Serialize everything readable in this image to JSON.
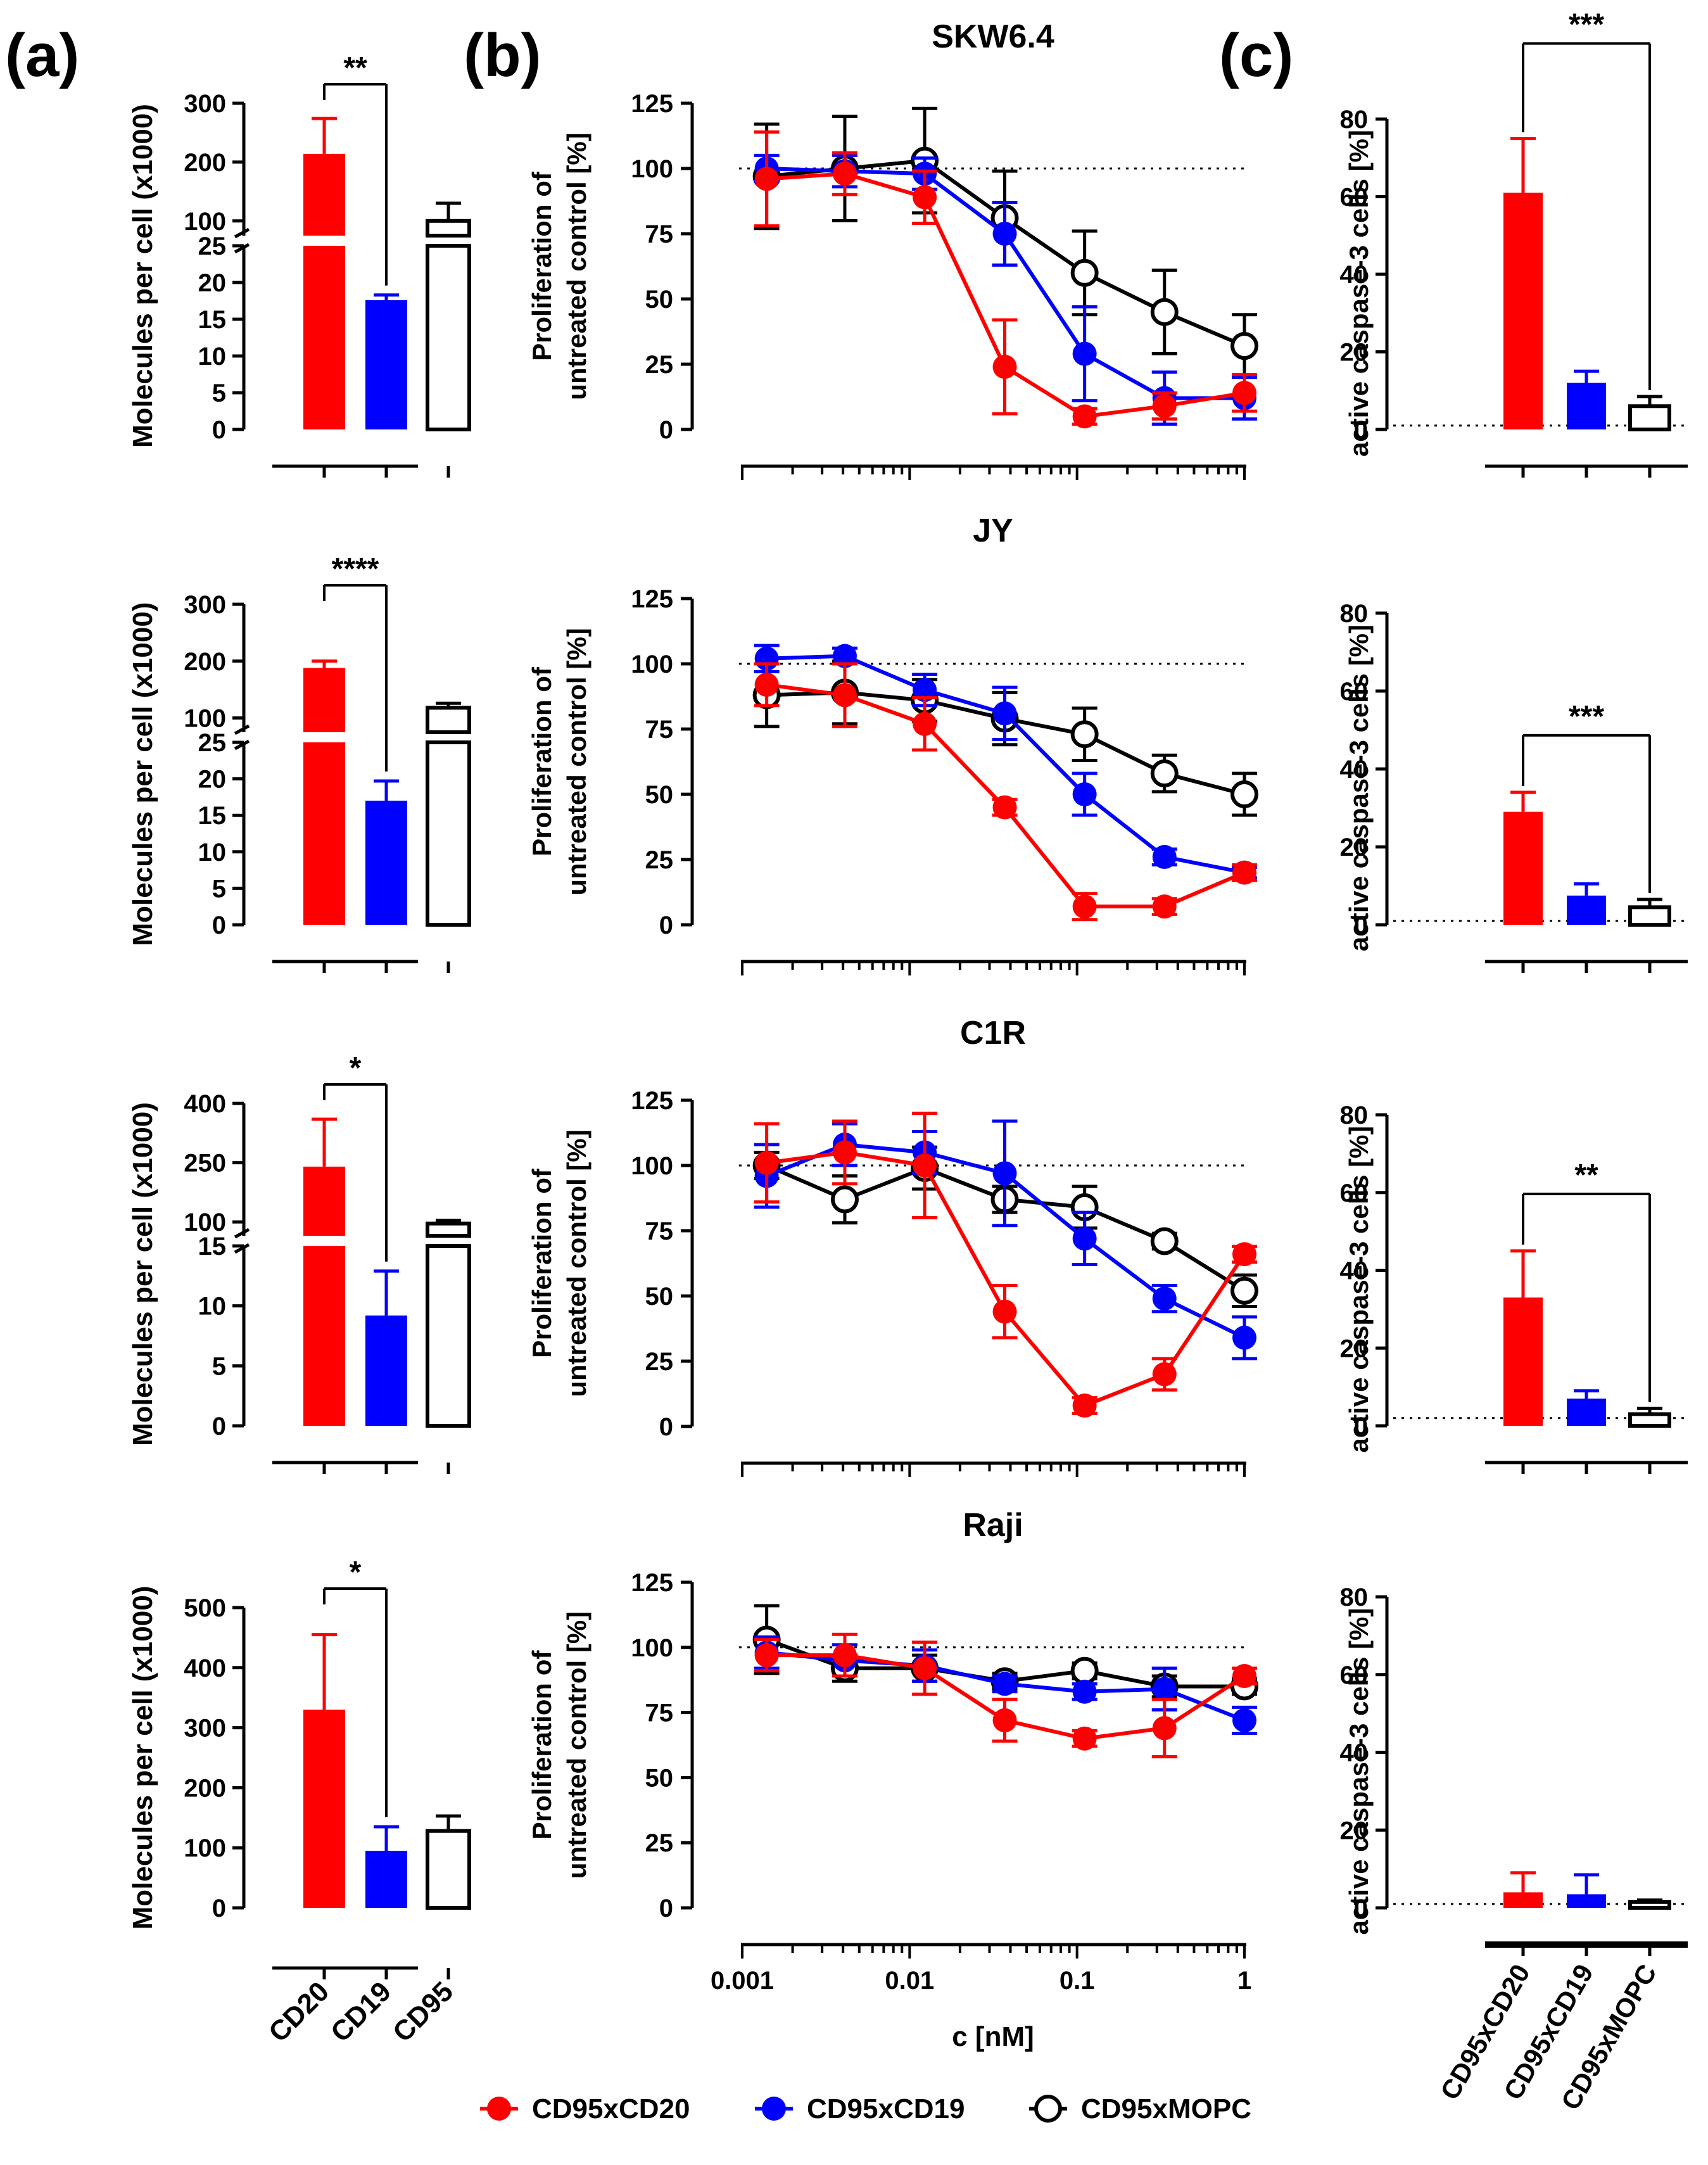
{
  "panel_labels": [
    "(a)",
    "(b)",
    "(c)"
  ],
  "colors": {
    "red": "#ff0000",
    "blue": "#0000ff",
    "black": "#000000"
  },
  "legend": [
    {
      "label": "CD95xCD20",
      "color": "#ff0000",
      "filled": true
    },
    {
      "label": "CD95xCD19",
      "color": "#0000ff",
      "filled": true
    },
    {
      "label": "CD95xMOPC",
      "color": "#000000",
      "filled": false
    }
  ],
  "chart_data": [
    {
      "id": "a",
      "type": "bar",
      "ylabel": "Molecules per cell (x1000)",
      "categories": [
        "CD20",
        "CD19",
        "CD95"
      ],
      "rows": [
        {
          "values": [
            214,
            17.6,
            100
          ],
          "errors": [
            60,
            0.7,
            30
          ],
          "sig": "**",
          "split": {
            "lower": [
              0,
              25
            ],
            "lower_ticks": [
              "0",
              "5",
              "10",
              "15",
              "20",
              "25"
            ],
            "upper": [
              75,
              300
            ],
            "upper_ticks": [
              "100",
              "200",
              "300"
            ]
          }
        },
        {
          "values": [
            188,
            17,
            118
          ],
          "errors": [
            12,
            2.7,
            8
          ],
          "sig": "****",
          "split": {
            "lower": [
              0,
              25
            ],
            "lower_ticks": [
              "0",
              "5",
              "10",
              "15",
              "20",
              "25"
            ],
            "upper": [
              75,
              300
            ],
            "upper_ticks": [
              "100",
              "200",
              "300"
            ]
          }
        },
        {
          "values": [
            240,
            9.2,
            96
          ],
          "errors": [
            120,
            3.7,
            8
          ],
          "sig": "*",
          "split": {
            "lower": [
              0,
              15
            ],
            "lower_ticks": [
              "0",
              "5",
              "10",
              "15"
            ],
            "upper": [
              65,
              400
            ],
            "upper_ticks": [
              "100",
              "250",
              "400"
            ]
          }
        },
        {
          "values": [
            330,
            95,
            128
          ],
          "errors": [
            125,
            40,
            25
          ],
          "sig": "*",
          "ylim": [
            0,
            500
          ],
          "yticks": [
            "0",
            "100",
            "200",
            "300",
            "400",
            "500"
          ]
        }
      ]
    },
    {
      "id": "b",
      "type": "line",
      "xlabel": "c [nM]",
      "ylabel_lines": [
        "Proliferation of",
        "untreated control [%]"
      ],
      "x": [
        0.0014,
        0.0041,
        0.0123,
        0.037,
        0.111,
        0.333,
        1
      ],
      "xticks": [
        "0.001",
        "0.01",
        "0.1",
        "1"
      ],
      "ylim": [
        0,
        125
      ],
      "yticks": [
        "0",
        "25",
        "50",
        "75",
        "100",
        "125"
      ],
      "reference_y": 100,
      "rows": [
        {
          "title": "SKW6.4",
          "series": [
            {
              "name": "CD95xCD20",
              "values": [
                96,
                98,
                89,
                24,
                5,
                9,
                14
              ],
              "errors": [
                18,
                8,
                10,
                18,
                3,
                5,
                7
              ]
            },
            {
              "name": "CD95xCD19",
              "values": [
                100,
                99,
                98,
                75,
                29,
                12,
                12
              ],
              "errors": [
                5,
                6,
                6,
                12,
                18,
                10,
                8
              ]
            },
            {
              "name": "CD95xMOPC",
              "values": [
                97,
                100,
                103,
                81,
                60,
                45,
                32
              ],
              "errors": [
                20,
                20,
                20,
                18,
                16,
                16,
                12
              ]
            }
          ]
        },
        {
          "title": "JY",
          "series": [
            {
              "name": "CD95xCD20",
              "values": [
                92,
                88,
                77,
                45,
                7,
                7,
                20
              ],
              "errors": [
                8,
                12,
                10,
                3,
                5,
                3,
                3
              ]
            },
            {
              "name": "CD95xCD19",
              "values": [
                102,
                103,
                90,
                81,
                50,
                26,
                20
              ],
              "errors": [
                5,
                3,
                6,
                10,
                8,
                3,
                2
              ]
            },
            {
              "name": "CD95xMOPC",
              "values": [
                88,
                89,
                86,
                79,
                73,
                58,
                50
              ],
              "errors": [
                12,
                12,
                8,
                10,
                10,
                7,
                8
              ]
            }
          ]
        },
        {
          "title": "C1R",
          "series": [
            {
              "name": "CD95xCD20",
              "values": [
                101,
                105,
                100,
                44,
                8,
                20,
                66
              ],
              "errors": [
                15,
                12,
                20,
                10,
                3,
                6,
                3
              ]
            },
            {
              "name": "CD95xCD19",
              "values": [
                96,
                108,
                105,
                97,
                72,
                49,
                34
              ],
              "errors": [
                12,
                8,
                8,
                20,
                10,
                5,
                8
              ]
            },
            {
              "name": "CD95xMOPC",
              "values": [
                100,
                87,
                99,
                87,
                84,
                71,
                52
              ],
              "errors": [
                5,
                9,
                8,
                5,
                8,
                3,
                6
              ]
            }
          ]
        },
        {
          "title": "Raji",
          "series": [
            {
              "name": "CD95xCD20",
              "values": [
                97,
                97,
                92,
                72,
                65,
                69,
                89
              ],
              "errors": [
                6,
                8,
                10,
                8,
                3,
                11,
                3
              ]
            },
            {
              "name": "CD95xCD19",
              "values": [
                98,
                95,
                93,
                86,
                83,
                84,
                72
              ],
              "errors": [
                6,
                6,
                6,
                3,
                3,
                8,
                5
              ]
            },
            {
              "name": "CD95xMOPC",
              "values": [
                103,
                92,
                92,
                87,
                91,
                85,
                85
              ],
              "errors": [
                13,
                5,
                5,
                3,
                3,
                4,
                3
              ]
            }
          ]
        }
      ]
    },
    {
      "id": "c",
      "type": "bar",
      "ylabel": "active caspase-3 cells [%]",
      "categories": [
        "CD95xCD20",
        "CD95xCD19",
        "CD95xMOPC"
      ],
      "ylim": [
        0,
        80
      ],
      "yticks": [
        "0",
        "20",
        "40",
        "60",
        "80"
      ],
      "rows": [
        {
          "values": [
            61,
            12,
            6
          ],
          "errors": [
            14,
            3,
            2.5
          ],
          "sig": "***",
          "baseline": 1
        },
        {
          "values": [
            29,
            7.5,
            4.5
          ],
          "errors": [
            5,
            3,
            2
          ],
          "sig": "***",
          "baseline": 1
        },
        {
          "values": [
            33,
            7,
            3
          ],
          "errors": [
            12,
            2,
            1.5
          ],
          "sig": "**",
          "baseline": 2
        },
        {
          "values": [
            4,
            3.5,
            1.5
          ],
          "errors": [
            5,
            5,
            0.5
          ],
          "sig": "",
          "baseline": 1
        }
      ]
    }
  ]
}
